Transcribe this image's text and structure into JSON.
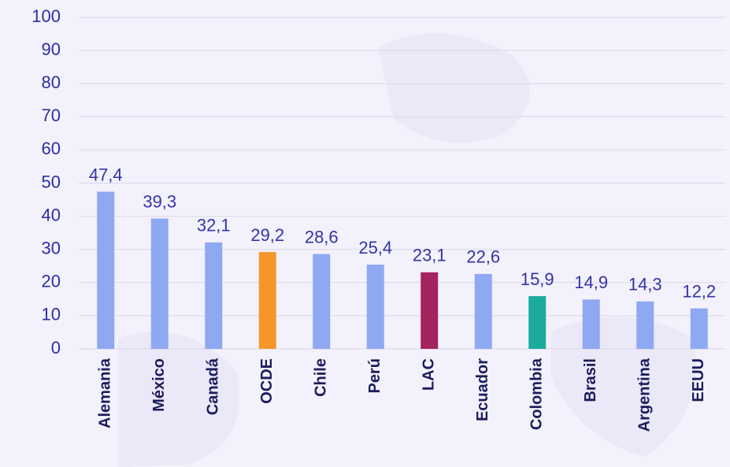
{
  "chart_data": {
    "type": "bar",
    "categories": [
      "Alemania",
      "México",
      "Canadá",
      "OCDE",
      "Chile",
      "Perú",
      "LAC",
      "Ecuador",
      "Colombia",
      "Brasil",
      "Argentina",
      "EEUU"
    ],
    "values": [
      47.4,
      39.3,
      32.1,
      29.2,
      28.6,
      25.4,
      23.1,
      22.6,
      15.9,
      14.9,
      14.3,
      12.2
    ],
    "value_labels": [
      "47,4",
      "39,3",
      "32,1",
      "29,2",
      "28,6",
      "25,4",
      "23,1",
      "22,6",
      "15,9",
      "14,9",
      "14,3",
      "12,2"
    ],
    "colors": [
      "#8ea8f2",
      "#8ea8f2",
      "#8ea8f2",
      "#f5962b",
      "#8ea8f2",
      "#8ea8f2",
      "#a3245f",
      "#8ea8f2",
      "#1aab9d",
      "#8ea8f2",
      "#8ea8f2",
      "#8ea8f2"
    ],
    "ylim": [
      0,
      100
    ],
    "yticks": [
      0,
      10,
      20,
      30,
      40,
      50,
      60,
      70,
      80,
      90,
      100
    ],
    "grid": true
  }
}
